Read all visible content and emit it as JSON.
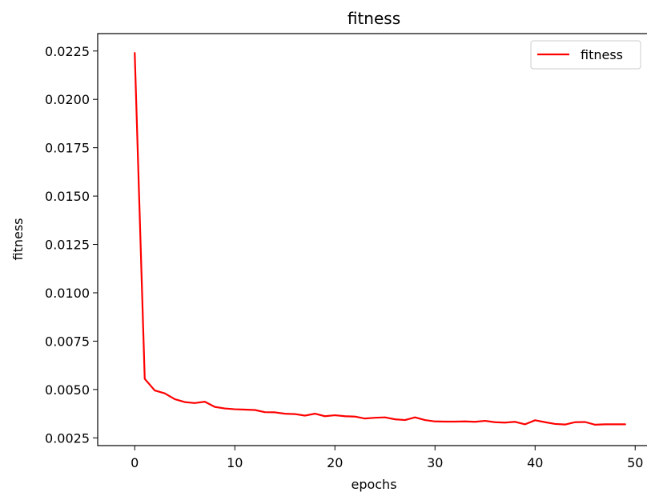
{
  "chart_data": {
    "type": "line",
    "title": "fitness",
    "xlabel": "epochs",
    "ylabel": "fitness",
    "xlim": [
      -3.7,
      51.5
    ],
    "ylim": [
      0.0021,
      0.0234
    ],
    "xticks": [
      0,
      10,
      20,
      30,
      40,
      50
    ],
    "xtick_labels": [
      "0",
      "10",
      "20",
      "30",
      "40",
      "50"
    ],
    "yticks": [
      0.0025,
      0.005,
      0.0075,
      0.01,
      0.0125,
      0.015,
      0.0175,
      0.02,
      0.0225
    ],
    "ytick_labels": [
      "0.0025",
      "0.0050",
      "0.0075",
      "0.0100",
      "0.0125",
      "0.0150",
      "0.0175",
      "0.0200",
      "0.0225"
    ],
    "grid": false,
    "legend_position": "top-right",
    "series": [
      {
        "name": "fitness",
        "color": "#ff0000",
        "x": [
          0,
          1,
          2,
          3,
          4,
          5,
          6,
          7,
          8,
          9,
          10,
          11,
          12,
          13,
          14,
          15,
          16,
          17,
          18,
          19,
          20,
          21,
          22,
          23,
          24,
          25,
          26,
          27,
          28,
          29,
          30,
          31,
          32,
          33,
          34,
          35,
          36,
          37,
          38,
          39,
          40,
          41,
          42,
          43,
          44,
          45,
          46,
          47,
          48,
          49
        ],
        "values": [
          0.0224,
          0.00555,
          0.00495,
          0.0048,
          0.0045,
          0.00435,
          0.0043,
          0.00437,
          0.0041,
          0.00402,
          0.00398,
          0.00396,
          0.00394,
          0.00383,
          0.00382,
          0.00375,
          0.00373,
          0.00365,
          0.00375,
          0.00362,
          0.00367,
          0.00362,
          0.0036,
          0.0035,
          0.00354,
          0.00356,
          0.00346,
          0.00342,
          0.00356,
          0.00342,
          0.00335,
          0.00334,
          0.00334,
          0.00335,
          0.00333,
          0.00338,
          0.00331,
          0.00329,
          0.00333,
          0.0032,
          0.00341,
          0.00331,
          0.00322,
          0.00319,
          0.00331,
          0.00332,
          0.00318,
          0.0032,
          0.0032,
          0.0032
        ]
      }
    ]
  }
}
